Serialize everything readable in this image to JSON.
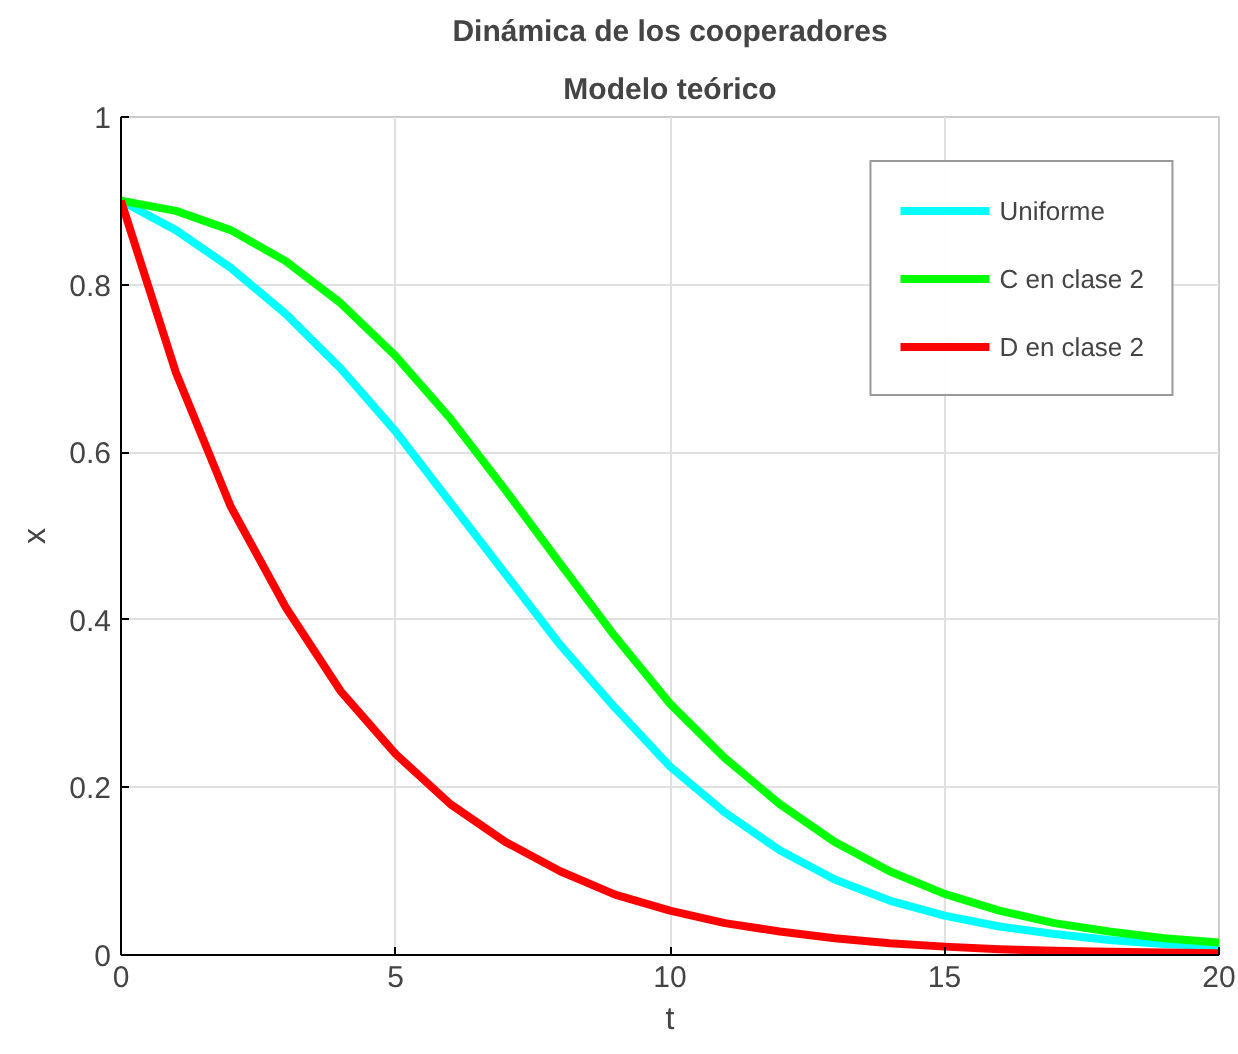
{
  "chart_data": {
    "type": "line",
    "title": "Dinámica de los cooperadores",
    "subtitle": "Modelo teórico",
    "xlabel": "t",
    "ylabel": "x",
    "x": [
      0,
      1,
      2,
      3,
      4,
      5,
      6,
      7,
      8,
      9,
      10,
      11,
      12,
      13,
      14,
      15,
      16,
      17,
      18,
      19,
      20
    ],
    "series": [
      {
        "name": "Uniforme",
        "color": "#00ffff",
        "values": [
          0.9,
          0.865,
          0.82,
          0.765,
          0.7,
          0.625,
          0.54,
          0.455,
          0.37,
          0.295,
          0.225,
          0.17,
          0.125,
          0.09,
          0.065,
          0.047,
          0.034,
          0.025,
          0.018,
          0.013,
          0.01
        ]
      },
      {
        "name": "C en clase 2",
        "color": "#00ff00",
        "values": [
          0.9,
          0.888,
          0.865,
          0.828,
          0.778,
          0.715,
          0.64,
          0.555,
          0.467,
          0.38,
          0.3,
          0.235,
          0.18,
          0.135,
          0.1,
          0.073,
          0.053,
          0.038,
          0.028,
          0.02,
          0.015
        ]
      },
      {
        "name": "D en clase 2",
        "color": "#ff0000",
        "values": [
          0.9,
          0.695,
          0.535,
          0.415,
          0.315,
          0.24,
          0.18,
          0.135,
          0.1,
          0.072,
          0.053,
          0.038,
          0.028,
          0.02,
          0.014,
          0.01,
          0.007,
          0.005,
          0.004,
          0.003,
          0.002
        ]
      }
    ],
    "xlim": [
      0,
      20
    ],
    "ylim": [
      0,
      1
    ],
    "xticks": [
      0,
      5,
      10,
      15,
      20
    ],
    "yticks": [
      0,
      0.2,
      0.4,
      0.6,
      0.8,
      1
    ],
    "grid": true,
    "legend": "top right",
    "line_style": "solid",
    "marker": "none"
  }
}
